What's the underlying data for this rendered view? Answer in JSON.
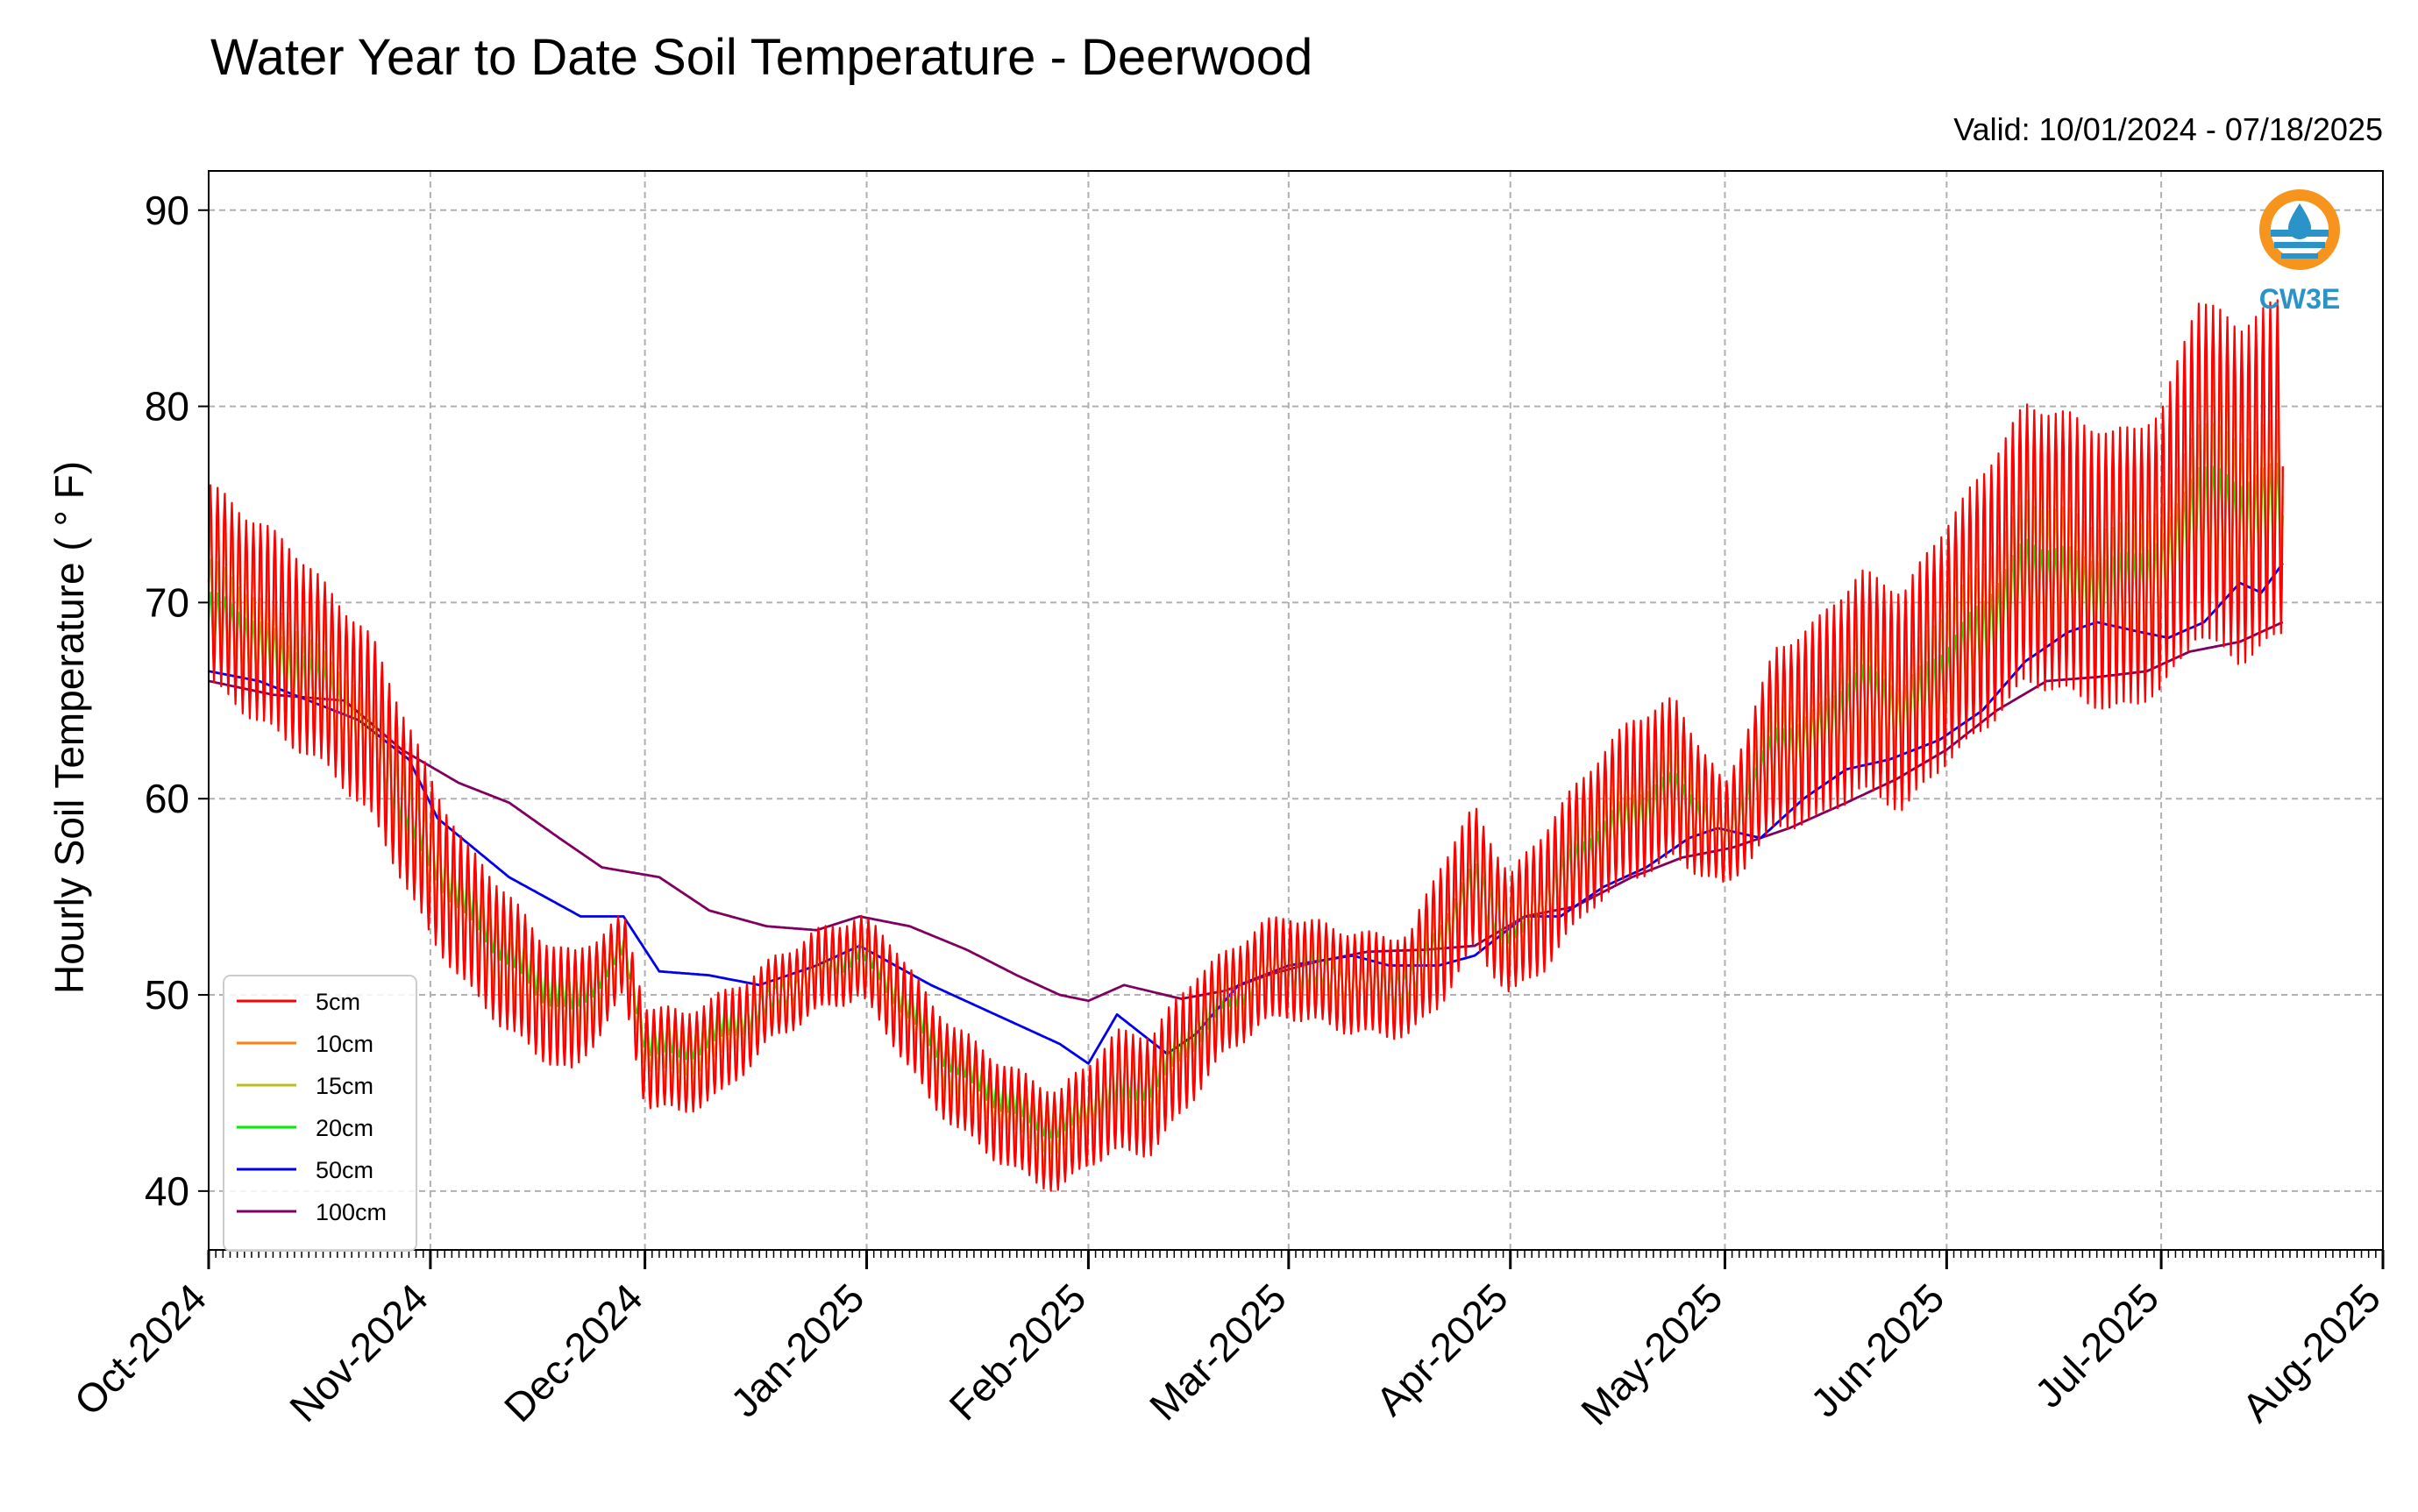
{
  "chart_data": {
    "type": "line",
    "title": "Water Year to Date Soil Temperature - Deerwood",
    "subtitle": "Valid: 10/01/2024 - 07/18/2025",
    "ylabel": "Hourly Soil Temperature ( ° F)",
    "xlabel": "",
    "ylim": [
      37,
      92
    ],
    "xlim": [
      "2024-10-01",
      "2025-08-01"
    ],
    "yticks": [
      40,
      50,
      60,
      70,
      80,
      90
    ],
    "xticks": [
      "2024-10-01",
      "2024-11-01",
      "2024-12-01",
      "2025-01-01",
      "2025-02-01",
      "2025-03-01",
      "2025-04-01",
      "2025-05-01",
      "2025-06-01",
      "2025-07-01",
      "2025-08-01"
    ],
    "xtick_labels": [
      "Oct-2024",
      "Nov-2024",
      "Dec-2024",
      "Jan-2025",
      "Feb-2025",
      "Mar-2025",
      "Apr-2025",
      "May-2025",
      "Jun-2025",
      "Jul-2025",
      "Aug-2025"
    ],
    "grid": true,
    "legend_position": "lower-left",
    "logo_text": "CW3E",
    "series": [
      {
        "name": "5cm",
        "color": "#ff0000",
        "x": [
          "2024-10-01",
          "2024-10-06",
          "2024-10-12",
          "2024-10-18",
          "2024-10-24",
          "2024-11-01",
          "2024-11-06",
          "2024-11-11",
          "2024-11-16",
          "2024-11-21",
          "2024-11-28",
          "2024-12-01",
          "2024-12-06",
          "2024-12-12",
          "2024-12-18",
          "2024-12-24",
          "2024-12-31",
          "2025-01-05",
          "2025-01-10",
          "2025-01-16",
          "2025-01-22",
          "2025-01-28",
          "2025-02-01",
          "2025-02-05",
          "2025-02-10",
          "2025-02-16",
          "2025-02-20",
          "2025-02-25",
          "2025-03-01",
          "2025-03-06",
          "2025-03-12",
          "2025-03-18",
          "2025-03-22",
          "2025-03-27",
          "2025-04-01",
          "2025-04-06",
          "2025-04-12",
          "2025-04-18",
          "2025-04-24",
          "2025-05-01",
          "2025-05-08",
          "2025-05-14",
          "2025-05-20",
          "2025-05-26",
          "2025-06-01",
          "2025-06-06",
          "2025-06-12",
          "2025-06-18",
          "2025-06-24",
          "2025-07-01",
          "2025-07-06",
          "2025-07-12",
          "2025-07-18"
        ],
        "mean": [
          71,
          69.5,
          68,
          66,
          63.5,
          57,
          54,
          52,
          50,
          49,
          52,
          47,
          46.5,
          47.5,
          49.5,
          51,
          52,
          50,
          47,
          45,
          43.5,
          42.5,
          44,
          45,
          45,
          48,
          49.5,
          51,
          51.5,
          51,
          50.5,
          50.5,
          53,
          56,
          53,
          55,
          58,
          60,
          61,
          58,
          63,
          64,
          66,
          65,
          68,
          70,
          73,
          72.5,
          71.5,
          72.5,
          77,
          75.5,
          77
        ],
        "amp": [
          5,
          5,
          5,
          4.5,
          4.5,
          4,
          3.5,
          3.5,
          3,
          3,
          2,
          2.5,
          2.5,
          2.5,
          2,
          2,
          2,
          2.5,
          2.5,
          2.5,
          2.5,
          2.5,
          2.5,
          3,
          3,
          3,
          2.5,
          2.5,
          2.5,
          2.5,
          2.5,
          2.5,
          3.5,
          3.5,
          3,
          3.5,
          3.5,
          4,
          4,
          2.5,
          4.5,
          5,
          5.5,
          5.5,
          6,
          6.5,
          7,
          7,
          7,
          7,
          8.5,
          8.5,
          8.5
        ]
      },
      {
        "name": "10cm",
        "color": "#ff7f0e",
        "x": [
          "2024-10-01",
          "2024-10-06",
          "2024-10-12",
          "2024-10-18",
          "2024-10-24",
          "2024-11-01",
          "2024-11-06",
          "2024-11-11",
          "2024-11-16",
          "2024-11-21",
          "2024-11-28",
          "2024-12-01",
          "2024-12-06",
          "2024-12-12",
          "2024-12-18",
          "2024-12-24",
          "2024-12-31",
          "2025-01-05",
          "2025-01-10",
          "2025-01-16",
          "2025-01-22",
          "2025-01-28",
          "2025-02-01",
          "2025-02-05",
          "2025-02-10",
          "2025-02-16",
          "2025-02-20",
          "2025-02-25",
          "2025-03-01",
          "2025-03-06",
          "2025-03-12",
          "2025-03-18",
          "2025-03-22",
          "2025-03-27",
          "2025-04-01",
          "2025-04-06",
          "2025-04-12",
          "2025-04-18",
          "2025-04-24",
          "2025-05-01",
          "2025-05-08",
          "2025-05-14",
          "2025-05-20",
          "2025-05-26",
          "2025-06-01",
          "2025-06-06",
          "2025-06-12",
          "2025-06-18",
          "2025-06-24",
          "2025-07-01",
          "2025-07-06",
          "2025-07-12",
          "2025-07-18"
        ],
        "mean": [
          71,
          69.5,
          68,
          66,
          63.5,
          57,
          54,
          52,
          50,
          49,
          52,
          47,
          46.5,
          47.5,
          49.5,
          51,
          52,
          50,
          47,
          45,
          43.5,
          42.5,
          44,
          45,
          45,
          48,
          49.5,
          51,
          51.5,
          51,
          50.5,
          50.5,
          53,
          56,
          53,
          55,
          58,
          60,
          61,
          58,
          63,
          64,
          66,
          65,
          68,
          70,
          73,
          72.5,
          71.5,
          72.5,
          77,
          75.5,
          77
        ],
        "amp": [
          3.2,
          3.2,
          3.2,
          2.9,
          2.9,
          2.6,
          2.3,
          2.3,
          2,
          2,
          1.3,
          1.6,
          1.6,
          1.6,
          1.3,
          1.3,
          1.3,
          1.6,
          1.6,
          1.6,
          1.6,
          1.6,
          1.6,
          2,
          2,
          2,
          1.6,
          1.6,
          1.6,
          1.6,
          1.6,
          1.6,
          2.3,
          2.3,
          2,
          2.3,
          2.3,
          2.6,
          2.6,
          1.6,
          2.9,
          3.2,
          3.5,
          3.5,
          3.9,
          4.2,
          4.5,
          4.5,
          4.5,
          4.5,
          5.5,
          5.5,
          5.5
        ]
      },
      {
        "name": "15cm",
        "color": "#bcbd22",
        "x": [
          "2024-10-01",
          "2024-10-06",
          "2024-10-12",
          "2024-10-18",
          "2024-10-24",
          "2024-11-01",
          "2024-11-06",
          "2024-11-11",
          "2024-11-16",
          "2024-11-21",
          "2024-11-28",
          "2024-12-01",
          "2024-12-06",
          "2024-12-12",
          "2024-12-18",
          "2024-12-24",
          "2024-12-31",
          "2025-01-05",
          "2025-01-10",
          "2025-01-16",
          "2025-01-22",
          "2025-01-28",
          "2025-02-01",
          "2025-02-05",
          "2025-02-10",
          "2025-02-16",
          "2025-02-20",
          "2025-02-25",
          "2025-03-01",
          "2025-03-06",
          "2025-03-12",
          "2025-03-18",
          "2025-03-22",
          "2025-03-27",
          "2025-04-01",
          "2025-04-06",
          "2025-04-12",
          "2025-04-18",
          "2025-04-24",
          "2025-05-01",
          "2025-05-08",
          "2025-05-14",
          "2025-05-20",
          "2025-05-26",
          "2025-06-01",
          "2025-06-06",
          "2025-06-12",
          "2025-06-18",
          "2025-06-24",
          "2025-07-01",
          "2025-07-06",
          "2025-07-12",
          "2025-07-18"
        ],
        "mean": [
          70,
          68.5,
          67,
          65,
          63,
          57,
          54,
          52,
          50,
          49.3,
          52,
          47.5,
          47,
          48,
          49.5,
          51,
          52,
          50,
          47.3,
          45.3,
          44,
          43,
          44.3,
          45.3,
          45.5,
          48,
          49.5,
          51,
          51.5,
          51,
          50.5,
          50.5,
          53,
          56,
          53,
          55,
          57.5,
          59.5,
          60.5,
          58,
          62.5,
          63.5,
          65.5,
          64.5,
          67,
          69,
          72,
          71.5,
          70.5,
          71.5,
          75.5,
          74.5,
          75.5
        ],
        "amp": [
          2.2,
          2.2,
          2.2,
          2,
          2,
          1.8,
          1.6,
          1.6,
          1.4,
          1.4,
          0.9,
          1.1,
          1.1,
          1.1,
          0.9,
          0.9,
          0.9,
          1.1,
          1.1,
          1.1,
          1.1,
          1.1,
          1.1,
          1.4,
          1.4,
          1.4,
          1.1,
          1.1,
          1.1,
          1.1,
          1.1,
          1.1,
          1.6,
          1.6,
          1.4,
          1.6,
          1.6,
          1.8,
          1.8,
          1.1,
          2,
          2.2,
          2.4,
          2.4,
          2.7,
          2.9,
          3.1,
          3.1,
          3.1,
          3.1,
          3.8,
          3.8,
          3.8
        ]
      },
      {
        "name": "20cm",
        "color": "#00ee00",
        "x": [
          "2024-10-01",
          "2024-10-06",
          "2024-10-12",
          "2024-10-18",
          "2024-10-24",
          "2024-11-01",
          "2024-11-06",
          "2024-11-11",
          "2024-11-16",
          "2024-11-21",
          "2024-11-28",
          "2024-12-01",
          "2024-12-06",
          "2024-12-12",
          "2024-12-18",
          "2024-12-24",
          "2024-12-31",
          "2025-01-05",
          "2025-01-10",
          "2025-01-16",
          "2025-01-22",
          "2025-01-28",
          "2025-02-01",
          "2025-02-05",
          "2025-02-10",
          "2025-02-16",
          "2025-02-20",
          "2025-02-25",
          "2025-03-01",
          "2025-03-06",
          "2025-03-12",
          "2025-03-18",
          "2025-03-22",
          "2025-03-27",
          "2025-04-01",
          "2025-04-06",
          "2025-04-12",
          "2025-04-18",
          "2025-04-24",
          "2025-05-01",
          "2025-05-08",
          "2025-05-14",
          "2025-05-20",
          "2025-05-26",
          "2025-06-01",
          "2025-06-06",
          "2025-06-12",
          "2025-06-18",
          "2025-06-24",
          "2025-07-01",
          "2025-07-06",
          "2025-07-12",
          "2025-07-18"
        ],
        "mean": [
          69,
          68,
          66.5,
          65,
          63,
          57.5,
          55,
          53,
          51,
          50,
          52.5,
          48,
          47.5,
          48.5,
          49.5,
          51,
          52.5,
          50.5,
          48,
          46,
          44.5,
          43.5,
          44.5,
          45.5,
          46,
          48.5,
          50,
          51,
          51.5,
          51,
          50.5,
          50.5,
          52.5,
          55.5,
          53.5,
          55,
          57,
          59,
          60,
          58,
          62,
          63,
          65,
          64,
          66,
          68,
          71,
          70.5,
          70,
          71,
          74.5,
          73.5,
          74.5
        ],
        "amp": [
          1.5,
          1.5,
          1.5,
          1.4,
          1.4,
          1.2,
          1.1,
          1.1,
          1,
          1,
          0.6,
          0.8,
          0.8,
          0.8,
          0.6,
          0.6,
          0.6,
          0.8,
          0.8,
          0.8,
          0.8,
          0.8,
          0.8,
          1,
          1,
          1,
          0.8,
          0.8,
          0.8,
          0.8,
          0.8,
          0.8,
          1.1,
          1.1,
          1,
          1.1,
          1.1,
          1.2,
          1.2,
          0.8,
          1.4,
          1.5,
          1.7,
          1.7,
          1.8,
          2,
          2.1,
          2.1,
          2.1,
          2.1,
          2.6,
          2.6,
          2.6
        ]
      },
      {
        "name": "50cm",
        "color": "#0000ee",
        "x": [
          "2024-10-01",
          "2024-10-08",
          "2024-10-15",
          "2024-10-22",
          "2024-10-29",
          "2024-11-02",
          "2024-11-07",
          "2024-11-12",
          "2024-11-17",
          "2024-11-22",
          "2024-11-28",
          "2024-12-03",
          "2024-12-10",
          "2024-12-17",
          "2024-12-21",
          "2024-12-25",
          "2024-12-31",
          "2025-01-05",
          "2025-01-10",
          "2025-01-16",
          "2025-01-22",
          "2025-01-28",
          "2025-02-01",
          "2025-02-05",
          "2025-02-12",
          "2025-02-16",
          "2025-02-22",
          "2025-03-01",
          "2025-03-10",
          "2025-03-15",
          "2025-03-22",
          "2025-03-27",
          "2025-04-03",
          "2025-04-08",
          "2025-04-14",
          "2025-04-20",
          "2025-04-26",
          "2025-04-30",
          "2025-05-06",
          "2025-05-12",
          "2025-05-18",
          "2025-05-24",
          "2025-05-31",
          "2025-06-06",
          "2025-06-12",
          "2025-06-18",
          "2025-06-22",
          "2025-06-28",
          "2025-07-02",
          "2025-07-07",
          "2025-07-12",
          "2025-07-15",
          "2025-07-18"
        ],
        "y": [
          66.5,
          66,
          65,
          64,
          62,
          59,
          57.5,
          56,
          55,
          54,
          54,
          51.2,
          51,
          50.5,
          51,
          51.5,
          52.5,
          51.5,
          50.5,
          49.5,
          48.5,
          47.5,
          46.5,
          49,
          47,
          48,
          50.5,
          51.5,
          52,
          51.5,
          51.5,
          52,
          54,
          54,
          55.5,
          56.5,
          58,
          58.5,
          58,
          60,
          61.5,
          62,
          63,
          64.5,
          67,
          68.5,
          69,
          68.5,
          68.2,
          69,
          71,
          70.5,
          72
        ]
      },
      {
        "name": "100cm",
        "color": "#800060",
        "x": [
          "2024-10-01",
          "2024-10-10",
          "2024-10-20",
          "2024-10-28",
          "2024-11-05",
          "2024-11-12",
          "2024-11-19",
          "2024-11-25",
          "2024-12-03",
          "2024-12-10",
          "2024-12-18",
          "2024-12-25",
          "2024-12-31",
          "2025-01-07",
          "2025-01-15",
          "2025-01-22",
          "2025-01-28",
          "2025-02-01",
          "2025-02-06",
          "2025-02-14",
          "2025-02-20",
          "2025-02-26",
          "2025-03-05",
          "2025-03-12",
          "2025-03-20",
          "2025-03-27",
          "2025-04-03",
          "2025-04-10",
          "2025-04-18",
          "2025-04-25",
          "2025-05-02",
          "2025-05-10",
          "2025-05-18",
          "2025-05-25",
          "2025-06-01",
          "2025-06-08",
          "2025-06-15",
          "2025-06-22",
          "2025-06-29",
          "2025-07-05",
          "2025-07-12",
          "2025-07-18"
        ],
        "y": [
          66,
          65.3,
          65,
          62.5,
          60.8,
          59.8,
          58,
          56.5,
          56,
          54.3,
          53.5,
          53.3,
          54,
          53.5,
          52.3,
          51,
          50,
          49.7,
          50.5,
          49.8,
          50.2,
          51,
          51.7,
          52.2,
          52.3,
          52.5,
          54,
          54.5,
          56,
          57,
          57.5,
          58.5,
          59.8,
          61,
          62.5,
          64.5,
          66,
          66.2,
          66.5,
          67.5,
          68,
          69
        ]
      }
    ]
  }
}
